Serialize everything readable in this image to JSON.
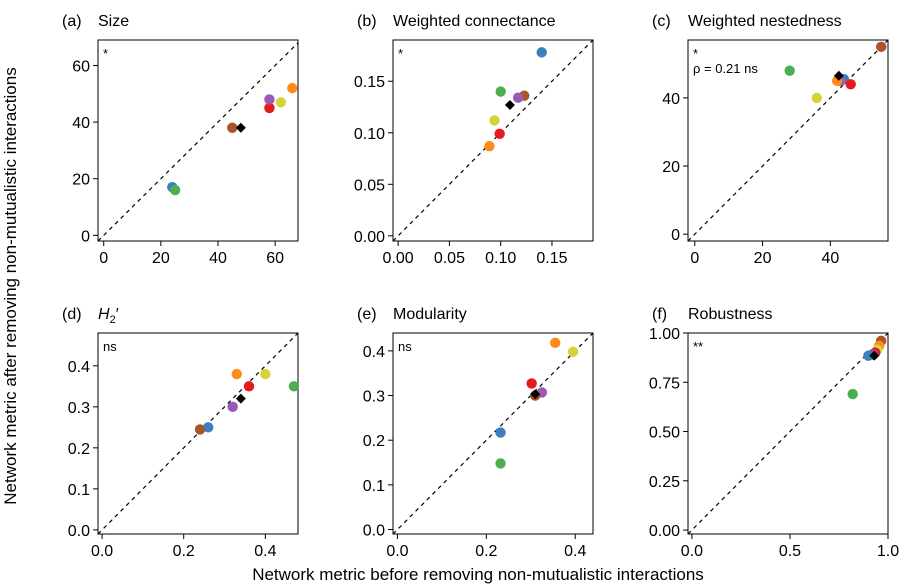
{
  "xlabel": "Network metric before removing non-mutualistic interactions",
  "ylabel": "Network metric after removing non-mutualistic interactions",
  "colors": {
    "blue": "#3a7fbf",
    "green": "#4cae4c",
    "orange": "#ff8c1a",
    "red": "#e41a1c",
    "purple": "#9b59b6",
    "yellow": "#d4d43a",
    "brown": "#a65628",
    "mean": "#000000"
  },
  "chart_data": [
    {
      "type": "scatter",
      "letter": "(a)",
      "title": "Size",
      "title_italic": false,
      "annotation": "*",
      "annotation2": "",
      "xlim": [
        -2,
        68
      ],
      "ylim": [
        -2,
        69
      ],
      "xticks": [
        0,
        20,
        40,
        60
      ],
      "xtick_labels": [
        "0",
        "20",
        "40",
        "60"
      ],
      "yticks": [
        0,
        20,
        40,
        60
      ],
      "ytick_labels": [
        "0",
        "20",
        "40",
        "60"
      ],
      "points": [
        {
          "color": "blue",
          "x": 24,
          "y": 17
        },
        {
          "color": "green",
          "x": 25,
          "y": 16
        },
        {
          "color": "brown",
          "x": 45,
          "y": 38
        },
        {
          "color": "red",
          "x": 58,
          "y": 45
        },
        {
          "color": "purple",
          "x": 58,
          "y": 48
        },
        {
          "color": "yellow",
          "x": 62,
          "y": 47
        },
        {
          "color": "orange",
          "x": 66,
          "y": 52
        }
      ],
      "mean": {
        "x": 48,
        "y": 38
      }
    },
    {
      "type": "scatter",
      "letter": "(b)",
      "title": "Weighted connectance",
      "title_italic": false,
      "annotation": "*",
      "annotation2": "",
      "xlim": [
        -0.005,
        0.19
      ],
      "ylim": [
        -0.005,
        0.19
      ],
      "xticks": [
        0,
        0.05,
        0.1,
        0.15
      ],
      "xtick_labels": [
        "0.00",
        "0.05",
        "0.10",
        "0.15"
      ],
      "yticks": [
        0,
        0.05,
        0.1,
        0.15
      ],
      "ytick_labels": [
        "0.00",
        "0.05",
        "0.10",
        "0.15"
      ],
      "points": [
        {
          "color": "blue",
          "x": 0.14,
          "y": 0.178
        },
        {
          "color": "green",
          "x": 0.1,
          "y": 0.14
        },
        {
          "color": "brown",
          "x": 0.123,
          "y": 0.136
        },
        {
          "color": "purple",
          "x": 0.117,
          "y": 0.134
        },
        {
          "color": "yellow",
          "x": 0.094,
          "y": 0.112
        },
        {
          "color": "red",
          "x": 0.099,
          "y": 0.099
        },
        {
          "color": "orange",
          "x": 0.089,
          "y": 0.087
        }
      ],
      "mean": {
        "x": 0.109,
        "y": 0.127
      }
    },
    {
      "type": "scatter",
      "letter": "(c)",
      "title": "Weighted nestedness",
      "title_italic": false,
      "annotation": "*",
      "annotation2": "ρ = 0.21 ns",
      "xlim": [
        -2,
        57
      ],
      "ylim": [
        -2,
        57
      ],
      "xticks": [
        0,
        20,
        40
      ],
      "xtick_labels": [
        "0",
        "20",
        "40"
      ],
      "yticks": [
        0,
        20,
        40
      ],
      "ytick_labels": [
        "0",
        "20",
        "40"
      ],
      "points": [
        {
          "color": "brown",
          "x": 55,
          "y": 55
        },
        {
          "color": "green",
          "x": 28,
          "y": 48
        },
        {
          "color": "blue",
          "x": 44,
          "y": 45.5
        },
        {
          "color": "purple",
          "x": 43,
          "y": 45
        },
        {
          "color": "orange",
          "x": 42,
          "y": 45
        },
        {
          "color": "red",
          "x": 46,
          "y": 44
        },
        {
          "color": "yellow",
          "x": 36,
          "y": 40
        }
      ],
      "mean": {
        "x": 42.5,
        "y": 46.5
      }
    },
    {
      "type": "scatter",
      "letter": "(d)",
      "title": "H",
      "title_italic": true,
      "title_sub": "2",
      "title_suffix": "′",
      "annotation": "ns",
      "annotation2": "",
      "xlim": [
        -0.01,
        0.48
      ],
      "ylim": [
        -0.01,
        0.48
      ],
      "xticks": [
        0,
        0.2,
        0.4
      ],
      "xtick_labels": [
        "0.0",
        "0.2",
        "0.4"
      ],
      "yticks": [
        0,
        0.1,
        0.2,
        0.3,
        0.4
      ],
      "ytick_labels": [
        "0.0",
        "0.1",
        "0.2",
        "0.3",
        "0.4"
      ],
      "points": [
        {
          "color": "orange",
          "x": 0.33,
          "y": 0.38
        },
        {
          "color": "yellow",
          "x": 0.4,
          "y": 0.38
        },
        {
          "color": "green",
          "x": 0.47,
          "y": 0.35
        },
        {
          "color": "red",
          "x": 0.36,
          "y": 0.35
        },
        {
          "color": "purple",
          "x": 0.32,
          "y": 0.3
        },
        {
          "color": "blue",
          "x": 0.26,
          "y": 0.25
        },
        {
          "color": "brown",
          "x": 0.24,
          "y": 0.245
        }
      ],
      "mean": {
        "x": 0.34,
        "y": 0.32
      }
    },
    {
      "type": "scatter",
      "letter": "(e)",
      "title": "Modularity",
      "title_italic": false,
      "annotation": "ns",
      "annotation2": "",
      "xlim": [
        -0.01,
        0.44
      ],
      "ylim": [
        -0.01,
        0.44
      ],
      "xticks": [
        0,
        0.2,
        0.4
      ],
      "xtick_labels": [
        "0.0",
        "0.2",
        "0.4"
      ],
      "yticks": [
        0,
        0.1,
        0.2,
        0.3,
        0.4
      ],
      "ytick_labels": [
        "0.0",
        "0.1",
        "0.2",
        "0.3",
        "0.4"
      ],
      "points": [
        {
          "color": "orange",
          "x": 0.355,
          "y": 0.418
        },
        {
          "color": "yellow",
          "x": 0.395,
          "y": 0.398
        },
        {
          "color": "red",
          "x": 0.302,
          "y": 0.327
        },
        {
          "color": "purple",
          "x": 0.325,
          "y": 0.307
        },
        {
          "color": "brown",
          "x": 0.31,
          "y": 0.3
        },
        {
          "color": "blue",
          "x": 0.232,
          "y": 0.217
        },
        {
          "color": "green",
          "x": 0.232,
          "y": 0.148
        }
      ],
      "mean": {
        "x": 0.31,
        "y": 0.303
      }
    },
    {
      "type": "scatter",
      "letter": "(f)",
      "title": "Robustness",
      "title_italic": false,
      "annotation": "**",
      "annotation2": "",
      "xlim": [
        -0.02,
        1.0
      ],
      "ylim": [
        -0.02,
        1.0
      ],
      "xticks": [
        0,
        0.5,
        1.0
      ],
      "xtick_labels": [
        "0.0",
        "0.5",
        "1.0"
      ],
      "yticks": [
        0,
        0.25,
        0.5,
        0.75,
        1.0
      ],
      "ytick_labels": [
        "0.00",
        "0.25",
        "0.50",
        "0.75",
        "1.00"
      ],
      "points": [
        {
          "color": "brown",
          "x": 0.965,
          "y": 0.96
        },
        {
          "color": "orange",
          "x": 0.955,
          "y": 0.935
        },
        {
          "color": "yellow",
          "x": 0.945,
          "y": 0.915
        },
        {
          "color": "red",
          "x": 0.935,
          "y": 0.9
        },
        {
          "color": "purple",
          "x": 0.925,
          "y": 0.89
        },
        {
          "color": "blue",
          "x": 0.9,
          "y": 0.885
        },
        {
          "color": "green",
          "x": 0.82,
          "y": 0.69
        }
      ],
      "mean": {
        "x": 0.93,
        "y": 0.885
      }
    }
  ]
}
